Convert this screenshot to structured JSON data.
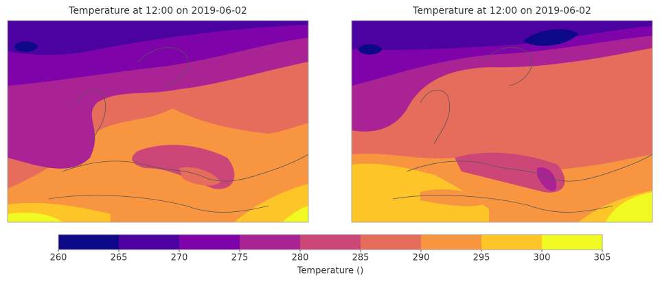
{
  "chart_data": [
    {
      "type": "contour-map",
      "title": "Temperature at 12:00 on 2019-06-02"
    },
    {
      "type": "contour-map",
      "title": "Temperature at 12:00 on 2019-06-02"
    },
    {
      "type": "colorbar",
      "xlabel": "Temperature ()",
      "xlim": [
        260,
        305
      ],
      "xticks": [
        260,
        265,
        270,
        275,
        280,
        285,
        290,
        295,
        300,
        305
      ],
      "colors": [
        "#0d0887",
        "#4c02a1",
        "#7e03a8",
        "#a92395",
        "#cc4778",
        "#e66c5c",
        "#f89540",
        "#fdc527",
        "#f0f921"
      ]
    }
  ]
}
